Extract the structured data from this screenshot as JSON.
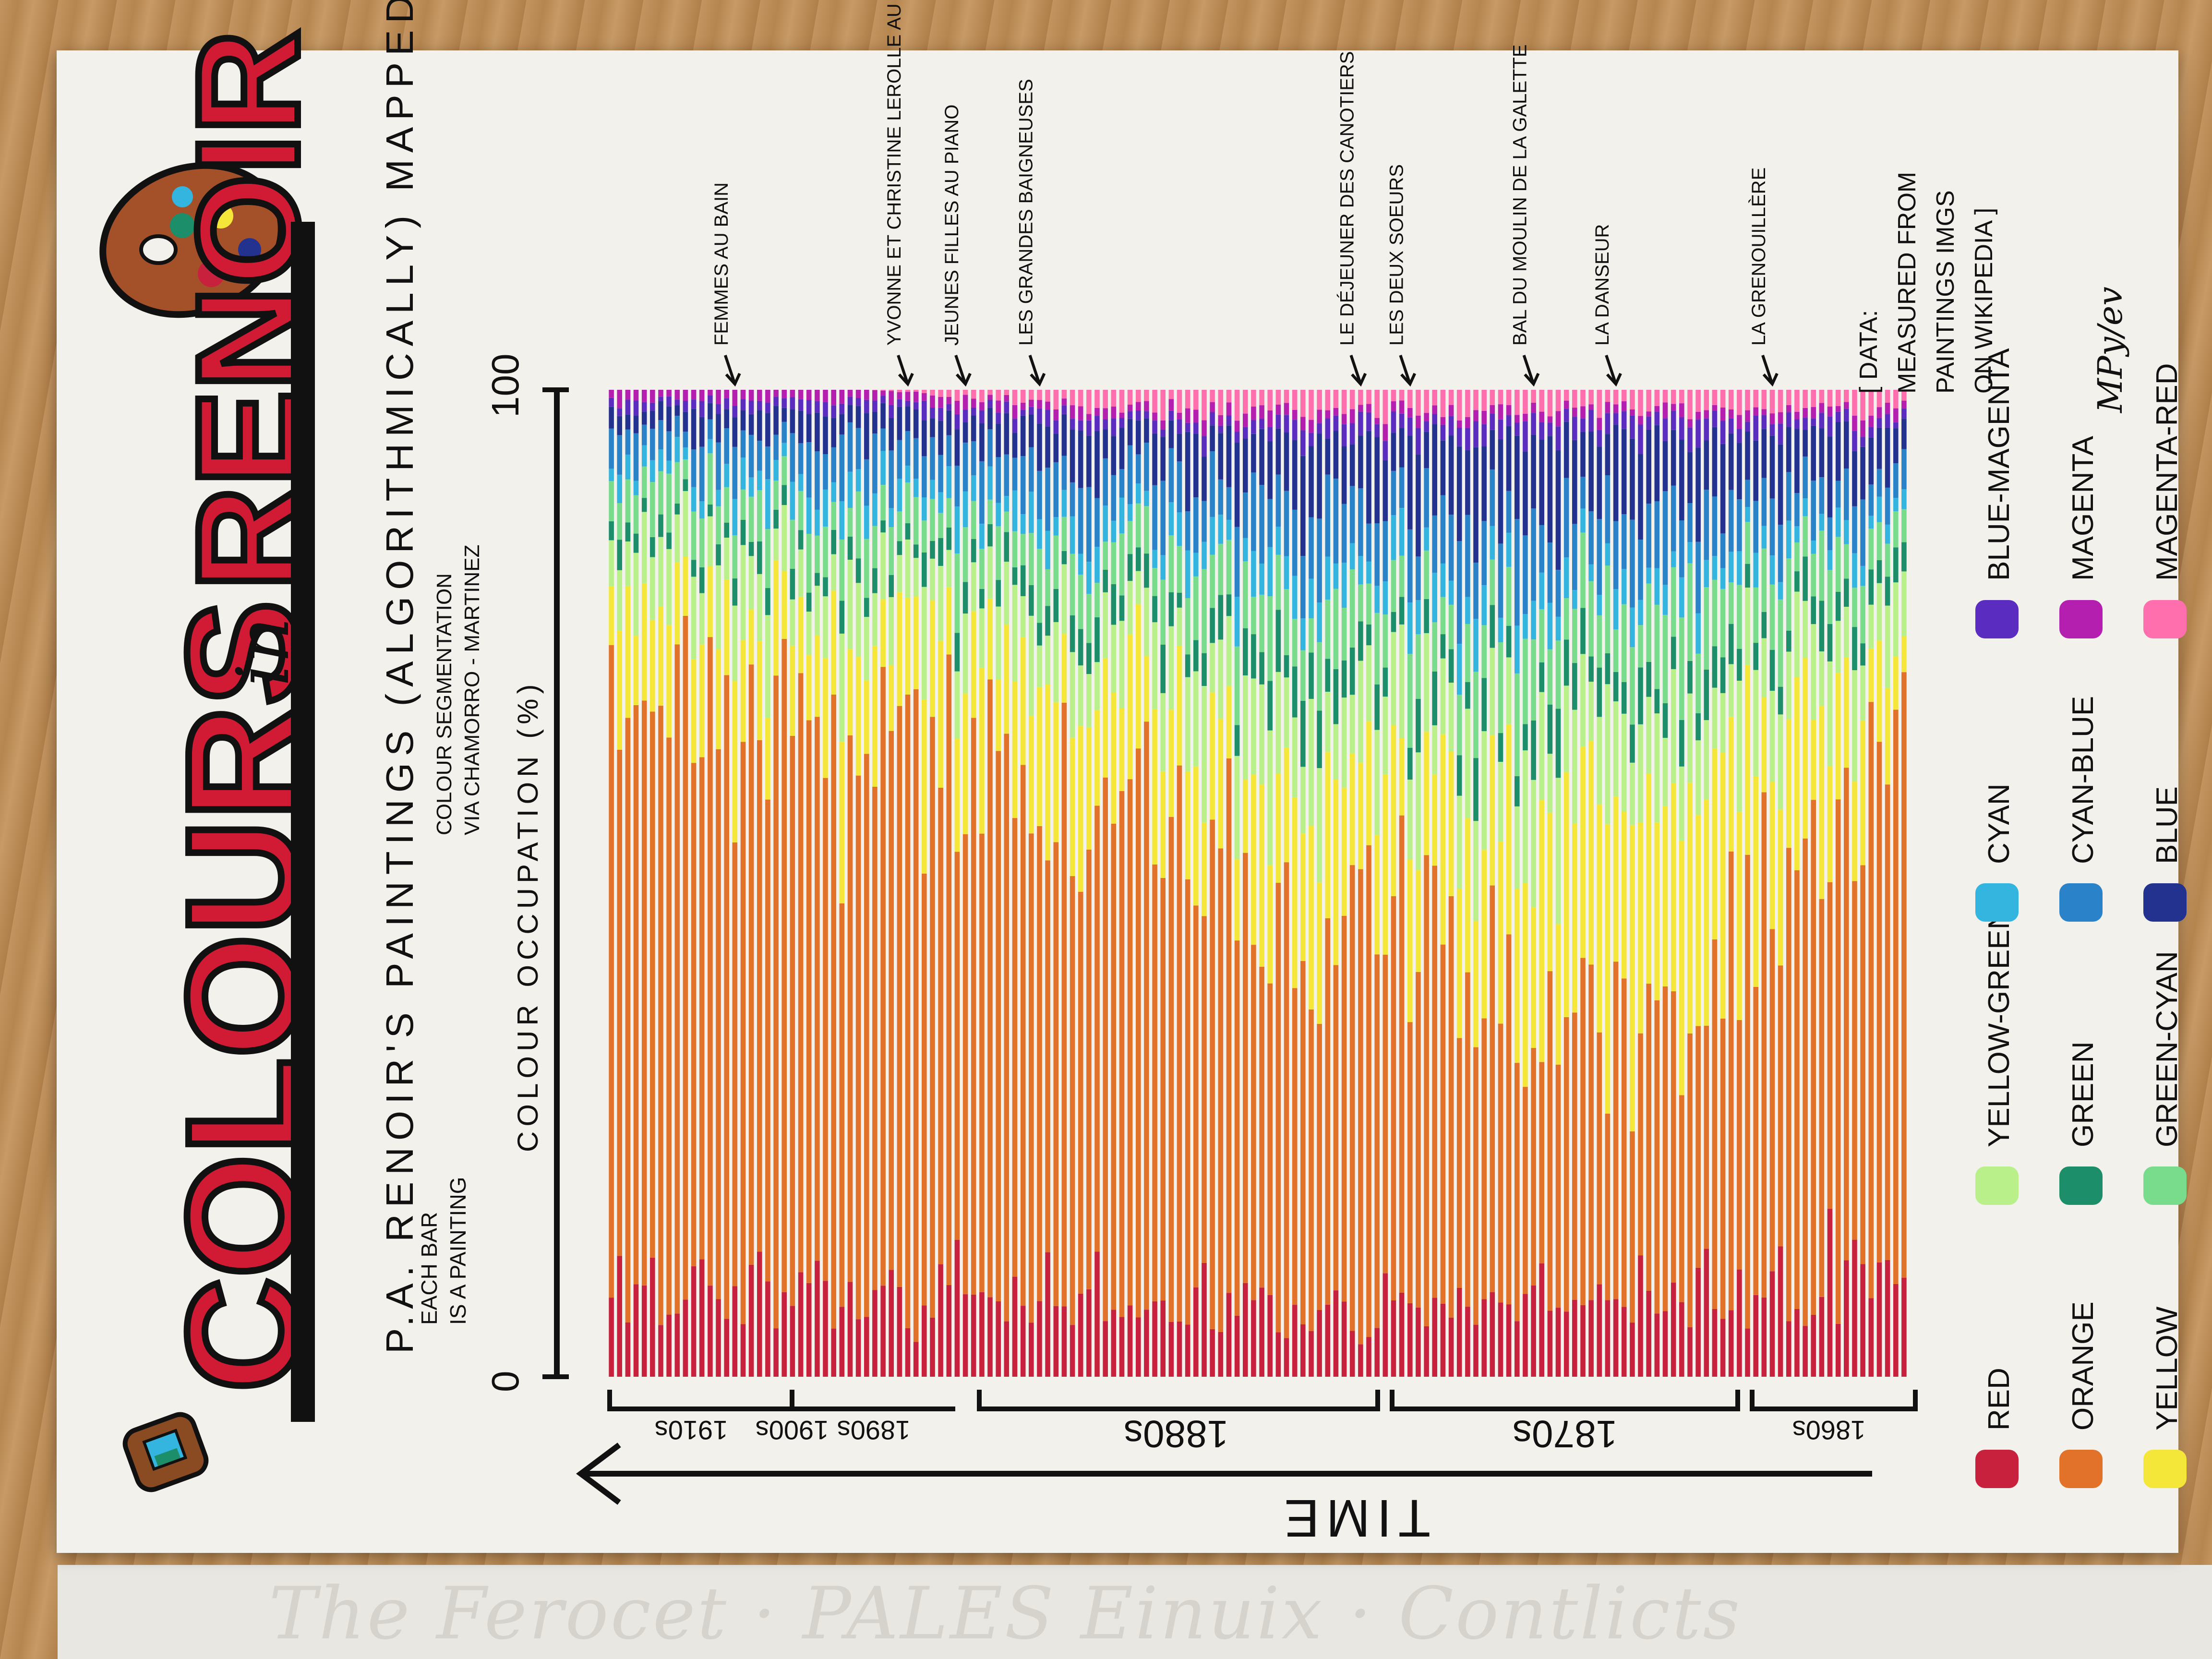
{
  "title": {
    "part1": "COLOURS",
    "part2": "in",
    "part3": "RENOIR"
  },
  "subtitle": "P.A. RENOIR'S PAINTINGS (ALGORITHMICALLY) MAPPED TO A PALETTE",
  "method_note": [
    "COLOUR SEGMENTATION",
    "VIA CHAMORRO - MARTINEZ"
  ],
  "bar_note": [
    "EACH BAR",
    "IS A PAINTING"
  ],
  "data_note": [
    "[ DATA:",
    "MEASURED FROM",
    "PAINTINGS IMGS",
    "ON WIKIPEDIA ]"
  ],
  "signature": "MPy/ev",
  "x_axis_label": "TIME",
  "y_axis_label": "COLOUR OCCUPATION (%)",
  "colors": {
    "red": "#c8213e",
    "orange": "#e2722a",
    "yellow": "#f5e63a",
    "yellow_green": "#b9f08a",
    "green": "#1c8f6a",
    "green_cyan": "#79dc8c",
    "cyan": "#33b5e0",
    "cyan_blue": "#2a83c9",
    "blue": "#23328f",
    "blue_magenta": "#5a2cc0",
    "magenta": "#b51fb0",
    "magenta_red": "#ff6fae"
  },
  "chart_data": {
    "type": "bar",
    "stacked": true,
    "orientation": "vertical, oldest painting at right, newest at left",
    "n_bars": 158,
    "y_axis": {
      "label": "COLOUR OCCUPATION (%)",
      "ticks": [
        "0",
        "100"
      ],
      "ylim": [
        0,
        100
      ]
    },
    "x_axis": {
      "label": "TIME",
      "arrow": "right-to-left",
      "periods": [
        "1860s",
        "1870s",
        "1880s",
        "1890s",
        "1900s",
        "1910s"
      ]
    },
    "series": [
      {
        "name": "RED",
        "color": "#c8213e"
      },
      {
        "name": "ORANGE",
        "color": "#e2722a"
      },
      {
        "name": "YELLOW",
        "color": "#f5e63a"
      },
      {
        "name": "YELLOW-GREEN",
        "color": "#b9f08a"
      },
      {
        "name": "GREEN",
        "color": "#1c8f6a"
      },
      {
        "name": "GREEN-CYAN",
        "color": "#79dc8c"
      },
      {
        "name": "CYAN",
        "color": "#33b5e0"
      },
      {
        "name": "CYAN-BLUE",
        "color": "#2a83c9"
      },
      {
        "name": "BLUE",
        "color": "#23328f"
      },
      {
        "name": "BLUE-MAGENTA",
        "color": "#5a2cc0"
      },
      {
        "name": "MAGENTA",
        "color": "#b51fb0"
      },
      {
        "name": "MAGENTA-RED",
        "color": "#ff6fae"
      }
    ],
    "period_trend": [
      {
        "period": "1860s",
        "red": 10,
        "orange": 55,
        "yellow": 8,
        "yellow_green": 6,
        "green": 3,
        "green_cyan": 4,
        "cyan": 2,
        "cyan_blue": 4,
        "blue": 4,
        "blue_magenta": 1,
        "magenta": 1,
        "magenta_red": 2
      },
      {
        "period": "1870s",
        "red": 8,
        "orange": 28,
        "yellow": 22,
        "yellow_green": 10,
        "green": 4,
        "green_cyan": 7,
        "cyan": 3,
        "cyan_blue": 6,
        "blue": 7,
        "blue_magenta": 2,
        "magenta": 1,
        "magenta_red": 2
      },
      {
        "period": "1880s",
        "red": 6,
        "orange": 38,
        "yellow": 14,
        "yellow_green": 9,
        "green": 4,
        "green_cyan": 6,
        "cyan": 4,
        "cyan_blue": 7,
        "blue": 7,
        "blue_magenta": 2,
        "magenta": 1,
        "magenta_red": 2
      },
      {
        "period": "1890s",
        "red": 7,
        "orange": 50,
        "yellow": 12,
        "yellow_green": 7,
        "green": 3,
        "green_cyan": 5,
        "cyan": 3,
        "cyan_blue": 5,
        "blue": 4,
        "blue_magenta": 1,
        "magenta": 1,
        "magenta_red": 2
      },
      {
        "period": "1900s",
        "red": 8,
        "orange": 58,
        "yellow": 10,
        "yellow_green": 6,
        "green": 2,
        "green_cyan": 4,
        "cyan": 3,
        "cyan_blue": 4,
        "blue": 3,
        "blue_magenta": 1,
        "magenta": 1,
        "magenta_red": 0
      },
      {
        "period": "1910s",
        "red": 8,
        "orange": 62,
        "yellow": 9,
        "yellow_green": 6,
        "green": 2,
        "green_cyan": 4,
        "cyan": 2,
        "cyan_blue": 3,
        "blue": 2,
        "blue_magenta": 1,
        "magenta": 1,
        "magenta_red": 0
      }
    ],
    "annotations": [
      {
        "text": "FEMMES AU BAIN",
        "bar": 15
      },
      {
        "text": "YVONNE ET CHRISTINE LEROLLE AU PIANO",
        "bar": 36
      },
      {
        "text": "JEUNES FILLES AU PIANO",
        "bar": 43
      },
      {
        "text": "LES GRANDES BAIGNEUSES",
        "bar": 52
      },
      {
        "text": "LE DÉJEUNER DES CANOTIERS",
        "bar": 91
      },
      {
        "text": "LES DEUX SOEURS",
        "bar": 97
      },
      {
        "text": "BAL DU MOULIN DE LA GALETTE",
        "bar": 112
      },
      {
        "text": "LA DANSEUR",
        "bar": 122
      },
      {
        "text": "LA GRENOUILLÈRE",
        "bar": 141
      }
    ]
  },
  "legend": [
    {
      "label": "RED",
      "color": "#c8213e"
    },
    {
      "label": "ORANGE",
      "color": "#e2722a"
    },
    {
      "label": "YELLOW",
      "color": "#f5e63a"
    },
    {
      "label": "YELLOW-GREEN",
      "color": "#b9f08a"
    },
    {
      "label": "GREEN",
      "color": "#1c8f6a"
    },
    {
      "label": "GREEN-CYAN",
      "color": "#79dc8c"
    },
    {
      "label": "CYAN",
      "color": "#33b5e0"
    },
    {
      "label": "CYAN-BLUE",
      "color": "#2a83c9"
    },
    {
      "label": "BLUE",
      "color": "#23328f"
    },
    {
      "label": "BLUE-MAGENTA",
      "color": "#5a2cc0"
    },
    {
      "label": "MAGENTA",
      "color": "#b51fb0"
    },
    {
      "label": "MAGENTA-RED",
      "color": "#ff6fae"
    }
  ]
}
